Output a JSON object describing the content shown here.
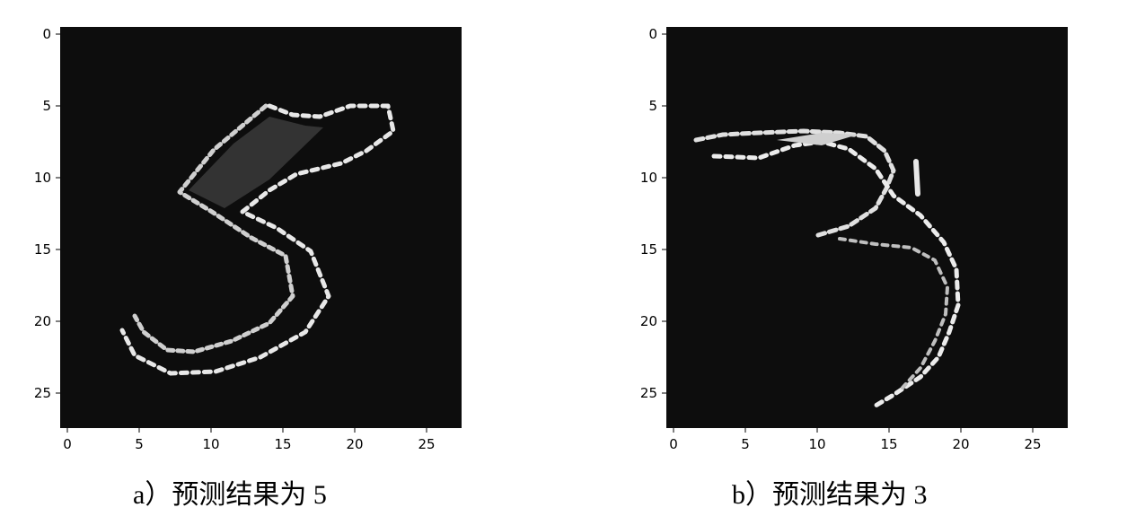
{
  "panels": [
    {
      "id": "a",
      "caption": "a）预测结果为 5",
      "background": "#0d0d0d",
      "x_ticks": [
        "0",
        "5",
        "10",
        "15",
        "20",
        "25"
      ],
      "y_ticks": [
        "0",
        "5",
        "10",
        "15",
        "20",
        "25"
      ],
      "image_size": 28,
      "digit_shown": "5"
    },
    {
      "id": "b",
      "caption": "b）预测结果为 3",
      "background": "#0d0d0d",
      "x_ticks": [
        "0",
        "5",
        "10",
        "15",
        "20",
        "25"
      ],
      "y_ticks": [
        "0",
        "5",
        "10",
        "15",
        "20",
        "25"
      ],
      "image_size": 28,
      "digit_shown": "3"
    }
  ]
}
